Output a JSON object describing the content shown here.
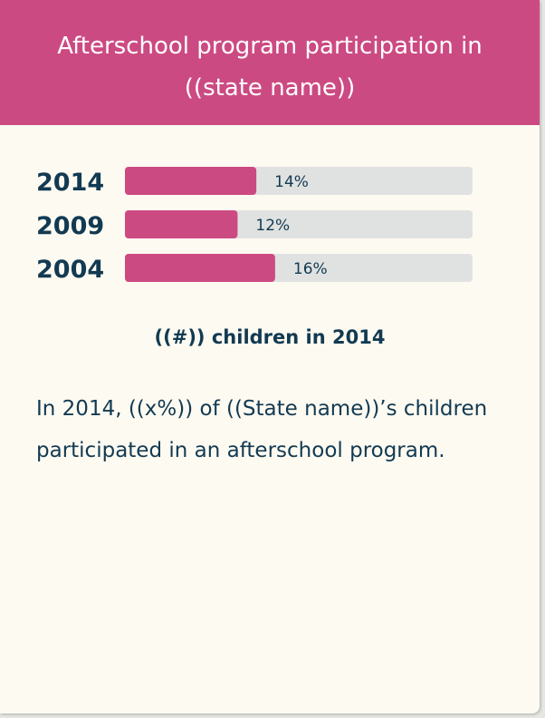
{
  "card": {
    "title": "Afterschool program participation in ((state name))",
    "subtitle": "((#)) children in 2014",
    "description": "In 2014, ((x%)) of ((State name))’s children participated in an afterschool program."
  },
  "colors": {
    "header": "#cc4a82",
    "bar_fill": "#cc4a82",
    "bar_track": "#e0e2e1",
    "text": "#123a52",
    "card_bg": "#fdfaf1"
  },
  "chart_data": {
    "type": "bar",
    "orientation": "horizontal",
    "categories": [
      "2014",
      "2009",
      "2004"
    ],
    "values": [
      14,
      12,
      16
    ],
    "value_labels": [
      "14%",
      "12%",
      "16%"
    ],
    "xlim": [
      0,
      100
    ],
    "grid": false
  }
}
